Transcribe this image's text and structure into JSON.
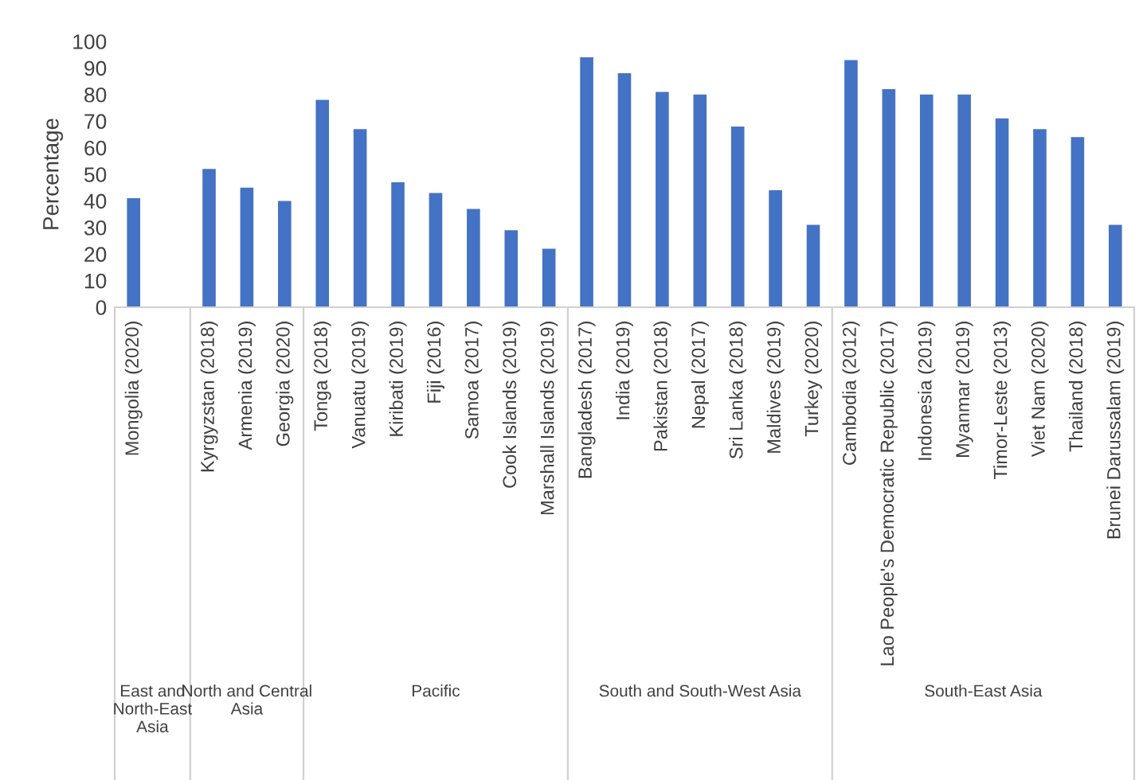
{
  "chart_data": {
    "type": "bar",
    "ylabel": "Percentage",
    "categories": [
      "Mongolia (2020)",
      null,
      "Kyrgyzstan (2018)",
      "Armenia (2019)",
      "Georgia (2020)",
      "Tonga (2018)",
      "Vanuatu (2019)",
      "Kiribati (2019)",
      "Fiji (2016)",
      "Samoa (2017)",
      "Cook Islands (2019)",
      "Marshall Islands (2019)",
      "Bangladesh (2017)",
      "India (2019)",
      "Pakistan (2018)",
      "Nepal (2017)",
      "Sri Lanka (2018)",
      "Maldives (2019)",
      "Turkey (2020)",
      "Cambodia (2012)",
      "Lao People's Democratic Republic (2017)",
      "Indonesia (2019)",
      "Myanmar (2019)",
      "Timor-Leste (2013)",
      "Viet Nam (2020)",
      "Thailand (2018)",
      "Brunei Darussalam (2019)"
    ],
    "values": [
      41,
      null,
      52,
      45,
      40,
      78,
      67,
      47,
      43,
      37,
      29,
      22,
      94,
      88,
      81,
      80,
      68,
      44,
      31,
      93,
      82,
      80,
      80,
      71,
      67,
      64,
      31
    ],
    "color": "#4472c4",
    "ylim": [
      0,
      100
    ],
    "yticks": [
      0,
      10,
      20,
      30,
      40,
      50,
      60,
      70,
      80,
      90,
      100
    ],
    "grid": false,
    "legend": false,
    "annotations": [
      "East and North-East Asia",
      "North and Central Asia",
      "Pacific",
      "South and South-West Asia",
      "South-East Asia"
    ]
  }
}
